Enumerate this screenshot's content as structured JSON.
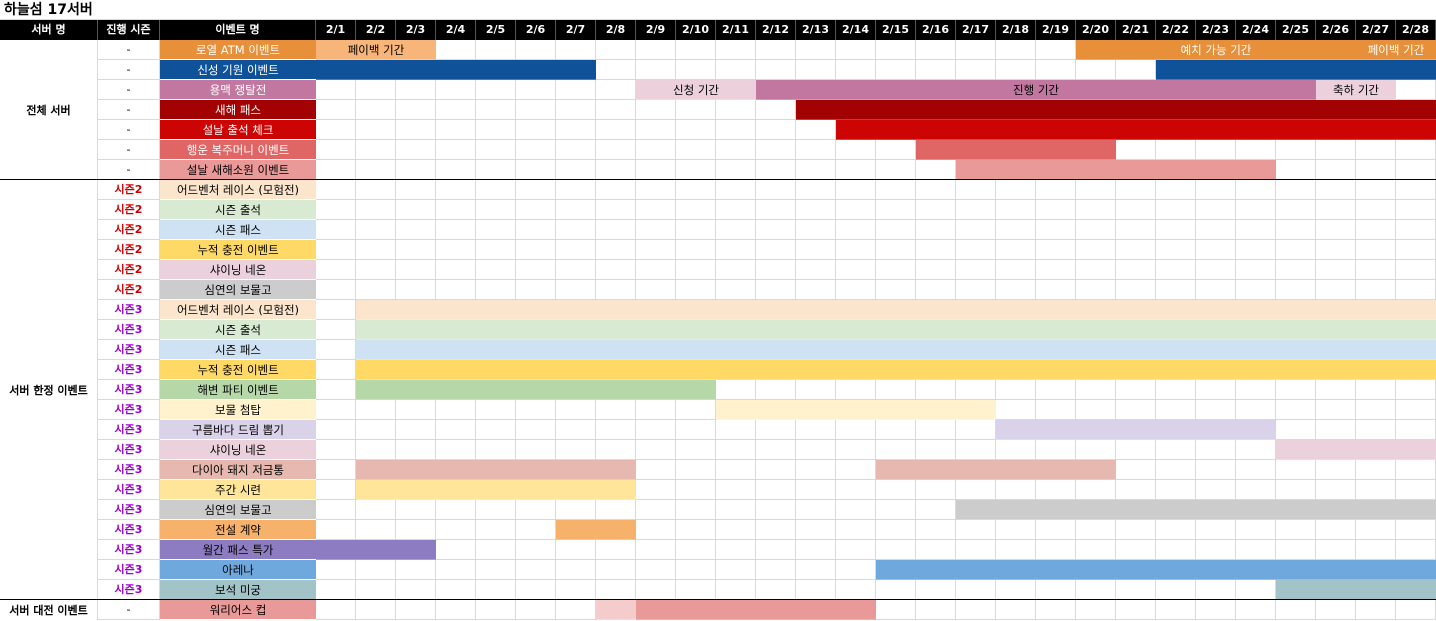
{
  "title": "하늘섬 17서버",
  "headers": {
    "server": "서버 명",
    "season": "진행 시즌",
    "event": "이벤트 명"
  },
  "dates": [
    "2/1",
    "2/2",
    "2/3",
    "2/4",
    "2/5",
    "2/6",
    "2/7",
    "2/8",
    "2/9",
    "2/10",
    "2/11",
    "2/12",
    "2/13",
    "2/14",
    "2/15",
    "2/16",
    "2/17",
    "2/18",
    "2/19",
    "2/20",
    "2/21",
    "2/22",
    "2/23",
    "2/24",
    "2/25",
    "2/26",
    "2/27",
    "2/28"
  ],
  "groups": [
    {
      "label": "전체 서버",
      "start": 0,
      "end": 6
    },
    {
      "label": "서버 한정 이벤트",
      "start": 7,
      "end": 27
    },
    {
      "label": "서버 대전 이벤트",
      "start": 28,
      "end": 28
    }
  ],
  "rows": [
    {
      "season": "-",
      "season_color": "#000000",
      "name": "로열 ATM 이벤트",
      "name_bg": "#e78f39",
      "name_fg": "#ffffff",
      "bars": [
        {
          "s": 0,
          "e": 2,
          "color": "#f8b579",
          "label": "페이백 기간",
          "fg": "#000000"
        },
        {
          "s": 19,
          "e": 25,
          "color": "#e78f39",
          "label": "예치 가능 기간",
          "fg": "#ffffff"
        },
        {
          "s": 26,
          "e": 27,
          "color": "#e78f39",
          "label": "페이백 기간",
          "fg": "#ffffff"
        }
      ]
    },
    {
      "season": "-",
      "season_color": "#000000",
      "name": "신성 기원 이벤트",
      "name_bg": "#0f529a",
      "name_fg": "#ffffff",
      "bars": [
        {
          "s": 0,
          "e": 6,
          "color": "#0f529a"
        },
        {
          "s": 21,
          "e": 27,
          "color": "#0f529a"
        }
      ]
    },
    {
      "season": "-",
      "season_color": "#000000",
      "name": "용맥 쟁탈전",
      "name_bg": "#c1779f",
      "name_fg": "#ffffff",
      "bars": [
        {
          "s": 8,
          "e": 10,
          "color": "#ecd1dd",
          "label": "신청 기간",
          "fg": "#000000"
        },
        {
          "s": 11,
          "e": 24,
          "color": "#c1779f",
          "label": "진행 기간",
          "fg": "#000000"
        },
        {
          "s": 25,
          "e": 26,
          "color": "#ecd1dd",
          "label": "축하 기간",
          "fg": "#000000"
        }
      ]
    },
    {
      "season": "-",
      "season_color": "#000000",
      "name": "새해 패스",
      "name_bg": "#a20202",
      "name_fg": "#ffffff",
      "bars": [
        {
          "s": 12,
          "e": 27,
          "color": "#a20202"
        }
      ]
    },
    {
      "season": "-",
      "season_color": "#000000",
      "name": "설날 출석 체크",
      "name_bg": "#cc0404",
      "name_fg": "#ffffff",
      "bars": [
        {
          "s": 13,
          "e": 27,
          "color": "#cc0404"
        }
      ]
    },
    {
      "season": "-",
      "season_color": "#000000",
      "name": "행운 복주머니 이벤트",
      "name_bg": "#e06666",
      "name_fg": "#ffffff",
      "bars": [
        {
          "s": 15,
          "e": 19,
          "color": "#e06666"
        }
      ]
    },
    {
      "season": "-",
      "season_color": "#000000",
      "name": "설날 새해소원 이벤트",
      "name_bg": "#ea9999",
      "name_fg": "#000000",
      "bars": [
        {
          "s": 16,
          "e": 23,
          "color": "#ea9999"
        }
      ]
    },
    {
      "season": "시즌2",
      "season_color": "#cc0000",
      "name": "어드벤처 레이스 (모험전)",
      "name_bg": "#fce5cd",
      "name_fg": "#000000",
      "bars": []
    },
    {
      "season": "시즌2",
      "season_color": "#cc0000",
      "name": "시즌 출석",
      "name_bg": "#d9ead3",
      "name_fg": "#000000",
      "bars": []
    },
    {
      "season": "시즌2",
      "season_color": "#cc0000",
      "name": "시즌 패스",
      "name_bg": "#cfe2f3",
      "name_fg": "#000000",
      "bars": []
    },
    {
      "season": "시즌2",
      "season_color": "#cc0000",
      "name": "누적 충전 이벤트",
      "name_bg": "#ffd966",
      "name_fg": "#000000",
      "bars": []
    },
    {
      "season": "시즌2",
      "season_color": "#cc0000",
      "name": "샤이닝 네온",
      "name_bg": "#ead1dc",
      "name_fg": "#000000",
      "bars": []
    },
    {
      "season": "시즌2",
      "season_color": "#cc0000",
      "name": "심연의 보물고",
      "name_bg": "#cccccc",
      "name_fg": "#000000",
      "bars": []
    },
    {
      "season": "시즌3",
      "season_color": "#9900cc",
      "name": "어드벤처 레이스 (모험전)",
      "name_bg": "#fce5cd",
      "name_fg": "#000000",
      "bars": [
        {
          "s": 1,
          "e": 27,
          "color": "#fce5cd"
        }
      ]
    },
    {
      "season": "시즌3",
      "season_color": "#9900cc",
      "name": "시즌 출석",
      "name_bg": "#d9ead3",
      "name_fg": "#000000",
      "bars": [
        {
          "s": 1,
          "e": 27,
          "color": "#d9ead3"
        }
      ]
    },
    {
      "season": "시즌3",
      "season_color": "#9900cc",
      "name": "시즌 패스",
      "name_bg": "#cfe2f3",
      "name_fg": "#000000",
      "bars": [
        {
          "s": 1,
          "e": 27,
          "color": "#cfe2f3"
        }
      ]
    },
    {
      "season": "시즌3",
      "season_color": "#9900cc",
      "name": "누적 충전 이벤트",
      "name_bg": "#ffd966",
      "name_fg": "#000000",
      "bars": [
        {
          "s": 1,
          "e": 27,
          "color": "#ffd966"
        }
      ]
    },
    {
      "season": "시즌3",
      "season_color": "#9900cc",
      "name": "해변 파티 이벤트",
      "name_bg": "#b6d7a8",
      "name_fg": "#000000",
      "bars": [
        {
          "s": 1,
          "e": 9,
          "color": "#b6d7a8"
        }
      ]
    },
    {
      "season": "시즌3",
      "season_color": "#9900cc",
      "name": "보물 첨탑",
      "name_bg": "#fff2cc",
      "name_fg": "#000000",
      "bars": [
        {
          "s": 10,
          "e": 16,
          "color": "#fff2cc"
        }
      ]
    },
    {
      "season": "시즌3",
      "season_color": "#9900cc",
      "name": "구름바다 드림 뽑기",
      "name_bg": "#d9d2e9",
      "name_fg": "#000000",
      "bars": [
        {
          "s": 17,
          "e": 23,
          "color": "#d9d2e9"
        }
      ]
    },
    {
      "season": "시즌3",
      "season_color": "#9900cc",
      "name": "샤이닝 네온",
      "name_bg": "#ead1dc",
      "name_fg": "#000000",
      "bars": [
        {
          "s": 24,
          "e": 27,
          "color": "#ead1dc"
        }
      ]
    },
    {
      "season": "시즌3",
      "season_color": "#9900cc",
      "name": "다이아 돼지 저금통",
      "name_bg": "#e6b8af",
      "name_fg": "#000000",
      "bars": [
        {
          "s": 1,
          "e": 7,
          "color": "#e6b8af"
        },
        {
          "s": 14,
          "e": 19,
          "color": "#e6b8af"
        }
      ]
    },
    {
      "season": "시즌3",
      "season_color": "#9900cc",
      "name": "주간 시련",
      "name_bg": "#ffe599",
      "name_fg": "#000000",
      "bars": [
        {
          "s": 1,
          "e": 7,
          "color": "#ffe599"
        }
      ]
    },
    {
      "season": "시즌3",
      "season_color": "#9900cc",
      "name": "심연의 보물고",
      "name_bg": "#cccccc",
      "name_fg": "#000000",
      "bars": [
        {
          "s": 16,
          "e": 27,
          "color": "#cccccc"
        }
      ]
    },
    {
      "season": "시즌3",
      "season_color": "#9900cc",
      "name": "전설 계약",
      "name_bg": "#f6b26b",
      "name_fg": "#000000",
      "bars": [
        {
          "s": 6,
          "e": 7,
          "color": "#f6b26b"
        }
      ]
    },
    {
      "season": "시즌3",
      "season_color": "#9900cc",
      "name": "월간 패스 특가",
      "name_bg": "#8e7cc3",
      "name_fg": "#000000",
      "bars": [
        {
          "s": 0,
          "e": 2,
          "color": "#8e7cc3"
        }
      ]
    },
    {
      "season": "시즌3",
      "season_color": "#9900cc",
      "name": "아레나",
      "name_bg": "#6fa8dc",
      "name_fg": "#000000",
      "bars": [
        {
          "s": 14,
          "e": 27,
          "color": "#6fa8dc"
        }
      ]
    },
    {
      "season": "시즌3",
      "season_color": "#9900cc",
      "name": "보석 미궁",
      "name_bg": "#a2c4c9",
      "name_fg": "#000000",
      "bars": [
        {
          "s": 24,
          "e": 27,
          "color": "#a2c4c9"
        }
      ]
    },
    {
      "season": "-",
      "season_color": "#000000",
      "name": "워리어스 컵",
      "name_bg": "#ea9999",
      "name_fg": "#000000",
      "bars": [
        {
          "s": 7,
          "e": 7,
          "color": "#f4cccc"
        },
        {
          "s": 8,
          "e": 13,
          "color": "#ea9999"
        }
      ]
    }
  ]
}
